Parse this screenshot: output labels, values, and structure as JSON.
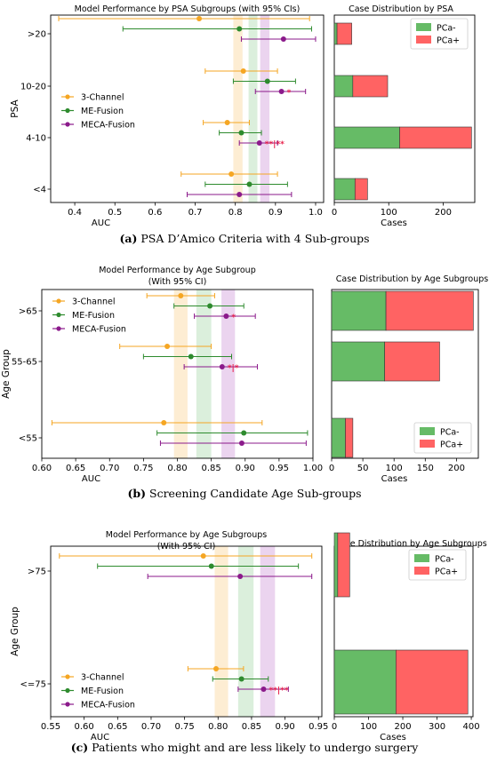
{
  "chart_data": [
    {
      "type": "scatter",
      "panel": "a",
      "title": "Model Performance by PSA Subgroups (with 95% CIs)",
      "xlabel": "AUC",
      "ylabel": "PSA",
      "xlim": [
        0.34,
        1.02
      ],
      "xticks": [
        "0.4",
        "0.5",
        "0.6",
        "0.7",
        "0.8",
        "0.9",
        "1.0"
      ],
      "categories": [
        ">20",
        "10-20",
        "4-10",
        "<4"
      ],
      "bands": [
        {
          "color": "#f5a623",
          "x0": 0.795,
          "x1": 0.818
        },
        {
          "color": "#4caf50",
          "x0": 0.833,
          "x1": 0.855
        },
        {
          "color": "#9c27b0",
          "x0": 0.862,
          "x1": 0.885
        }
      ],
      "series": [
        {
          "name": "3-Channel",
          "color": "#f5a623",
          "values": [
            {
              "mean": 0.71,
              "lo": 0.36,
              "hi": 0.985
            },
            {
              "mean": 0.82,
              "lo": 0.725,
              "hi": 0.905
            },
            {
              "mean": 0.78,
              "lo": 0.72,
              "hi": 0.835
            },
            {
              "mean": 0.79,
              "lo": 0.665,
              "hi": 0.905
            }
          ]
        },
        {
          "name": "ME-Fusion",
          "color": "#2e8b2e",
          "values": [
            {
              "mean": 0.81,
              "lo": 0.52,
              "hi": 0.99
            },
            {
              "mean": 0.88,
              "lo": 0.795,
              "hi": 0.95
            },
            {
              "mean": 0.815,
              "lo": 0.76,
              "hi": 0.865
            },
            {
              "mean": 0.835,
              "lo": 0.725,
              "hi": 0.93
            }
          ]
        },
        {
          "name": "MECA-Fusion",
          "color": "#8b1a8b",
          "values": [
            {
              "mean": 0.92,
              "lo": 0.815,
              "hi": 1.0
            },
            {
              "mean": 0.915,
              "lo": 0.85,
              "hi": 0.975
            },
            {
              "mean": 0.86,
              "lo": 0.81,
              "hi": 0.905
            },
            {
              "mean": 0.81,
              "lo": 0.68,
              "hi": 0.94
            }
          ]
        }
      ],
      "significance": [
        {
          "category": "10-20",
          "label": "*"
        },
        {
          "category": "4-10",
          "label": "**|**"
        }
      ],
      "legend_position": "center-left"
    },
    {
      "type": "bar",
      "panel": "a",
      "title": "Case Distribution by PSA",
      "xlabel": "Cases",
      "xlim": [
        0,
        258
      ],
      "xticks": [
        "0",
        "100",
        "200"
      ],
      "categories": [
        ">20",
        "10-20",
        "4-10",
        "<4"
      ],
      "stacked": true,
      "series": [
        {
          "name": "PCa-",
          "color": "#66bb66",
          "values": [
            5,
            34,
            120,
            38
          ]
        },
        {
          "name": "PCa+",
          "color": "#ff6363",
          "values": [
            27,
            64,
            132,
            23
          ]
        }
      ],
      "legend_position": "top-right"
    },
    {
      "type": "scatter",
      "panel": "b",
      "title": "Model Performance by Age Subgroup",
      "subtitle": "(With 95% CI)",
      "xlabel": "AUC",
      "ylabel": "Age Group",
      "xlim": [
        0.6,
        1.0
      ],
      "xticks": [
        "0.60",
        "0.65",
        "0.70",
        "0.75",
        "0.80",
        "0.85",
        "0.90",
        "0.95",
        "1.00"
      ],
      "categories": [
        ">65",
        "55-65",
        "<55"
      ],
      "bands": [
        {
          "color": "#f5a623",
          "x0": 0.795,
          "x1": 0.815
        },
        {
          "color": "#4caf50",
          "x0": 0.828,
          "x1": 0.85
        },
        {
          "color": "#9c27b0",
          "x0": 0.865,
          "x1": 0.885
        }
      ],
      "series": [
        {
          "name": "3-Channel",
          "color": "#f5a623",
          "values": [
            {
              "mean": 0.805,
              "lo": 0.755,
              "hi": 0.855
            },
            {
              "mean": 0.785,
              "lo": 0.715,
              "hi": 0.85
            },
            {
              "mean": 0.78,
              "lo": 0.615,
              "hi": 0.925
            }
          ]
        },
        {
          "name": "ME-Fusion",
          "color": "#2e8b2e",
          "values": [
            {
              "mean": 0.848,
              "lo": 0.795,
              "hi": 0.898
            },
            {
              "mean": 0.82,
              "lo": 0.75,
              "hi": 0.88
            },
            {
              "mean": 0.898,
              "lo": 0.77,
              "hi": 0.992
            }
          ]
        },
        {
          "name": "MECA-Fusion",
          "color": "#8b1a8b",
          "values": [
            {
              "mean": 0.872,
              "lo": 0.825,
              "hi": 0.915
            },
            {
              "mean": 0.866,
              "lo": 0.81,
              "hi": 0.918
            },
            {
              "mean": 0.895,
              "lo": 0.775,
              "hi": 0.99
            }
          ]
        }
      ],
      "significance": [
        {
          "category": ">65",
          "label": "*"
        },
        {
          "category": "55-65",
          "label": "*|*"
        }
      ],
      "legend_position": "top-left"
    },
    {
      "type": "bar",
      "panel": "b",
      "title": "Case Distribution by Age Subgroups",
      "xlabel": "Cases",
      "xlim": [
        0,
        235
      ],
      "xticks": [
        "0",
        "50",
        "100",
        "150",
        "200"
      ],
      "categories": [
        ">65",
        "55-65",
        "<55"
      ],
      "stacked": true,
      "series": [
        {
          "name": "PCa-",
          "color": "#66bb66",
          "values": [
            87,
            85,
            22
          ]
        },
        {
          "name": "PCa+",
          "color": "#ff6363",
          "values": [
            140,
            88,
            12
          ]
        }
      ],
      "legend_position": "bottom-right"
    },
    {
      "type": "scatter",
      "panel": "c",
      "title": "Model Performance by Age Subgroups",
      "subtitle": "(With 95% CI)",
      "xlabel": "AUC",
      "ylabel": "Age Group",
      "xlim": [
        0.55,
        0.955
      ],
      "xticks": [
        "0.55",
        "0.60",
        "0.65",
        "0.70",
        "0.75",
        "0.80",
        "0.85",
        "0.90",
        "0.95"
      ],
      "categories": [
        ">75",
        "<=75"
      ],
      "bands": [
        {
          "color": "#f5a623",
          "x0": 0.795,
          "x1": 0.815
        },
        {
          "color": "#4caf50",
          "x0": 0.83,
          "x1": 0.853
        },
        {
          "color": "#9c27b0",
          "x0": 0.863,
          "x1": 0.885
        }
      ],
      "series": [
        {
          "name": "3-Channel",
          "color": "#f5a623",
          "values": [
            {
              "mean": 0.778,
              "lo": 0.563,
              "hi": 0.94
            },
            {
              "mean": 0.797,
              "lo": 0.755,
              "hi": 0.838
            }
          ]
        },
        {
          "name": "ME-Fusion",
          "color": "#2e8b2e",
          "values": [
            {
              "mean": 0.79,
              "lo": 0.62,
              "hi": 0.92
            },
            {
              "mean": 0.835,
              "lo": 0.792,
              "hi": 0.875
            }
          ]
        },
        {
          "name": "MECA-Fusion",
          "color": "#8b1a8b",
          "values": [
            {
              "mean": 0.833,
              "lo": 0.695,
              "hi": 0.94
            },
            {
              "mean": 0.868,
              "lo": 0.83,
              "hi": 0.905
            }
          ]
        }
      ],
      "significance": [
        {
          "category": "<=75",
          "label": "**|**"
        }
      ],
      "legend_position": "bottom-left"
    },
    {
      "type": "bar",
      "panel": "c",
      "title": "Case Distribution by Age Subgroups",
      "xlabel": "Cases",
      "xlim": [
        0,
        405
      ],
      "xticks": [
        "0",
        "100",
        "200",
        "300",
        "400"
      ],
      "categories": [
        ">75",
        "<=75"
      ],
      "stacked": true,
      "series": [
        {
          "name": "PCa-",
          "color": "#66bb66",
          "values": [
            10,
            180
          ]
        },
        {
          "name": "PCa+",
          "color": "#ff6363",
          "values": [
            35,
            210
          ]
        }
      ],
      "legend_position": "top-right"
    }
  ],
  "captions": [
    {
      "label": "(a)",
      "text": "PSA D’Amico Criteria with 4 Sub-groups"
    },
    {
      "label": "(b)",
      "text": "Screening Candidate Age Sub-groups"
    },
    {
      "label": "(c)",
      "text": "Patients who might and are less likely to undergo surgery"
    }
  ]
}
